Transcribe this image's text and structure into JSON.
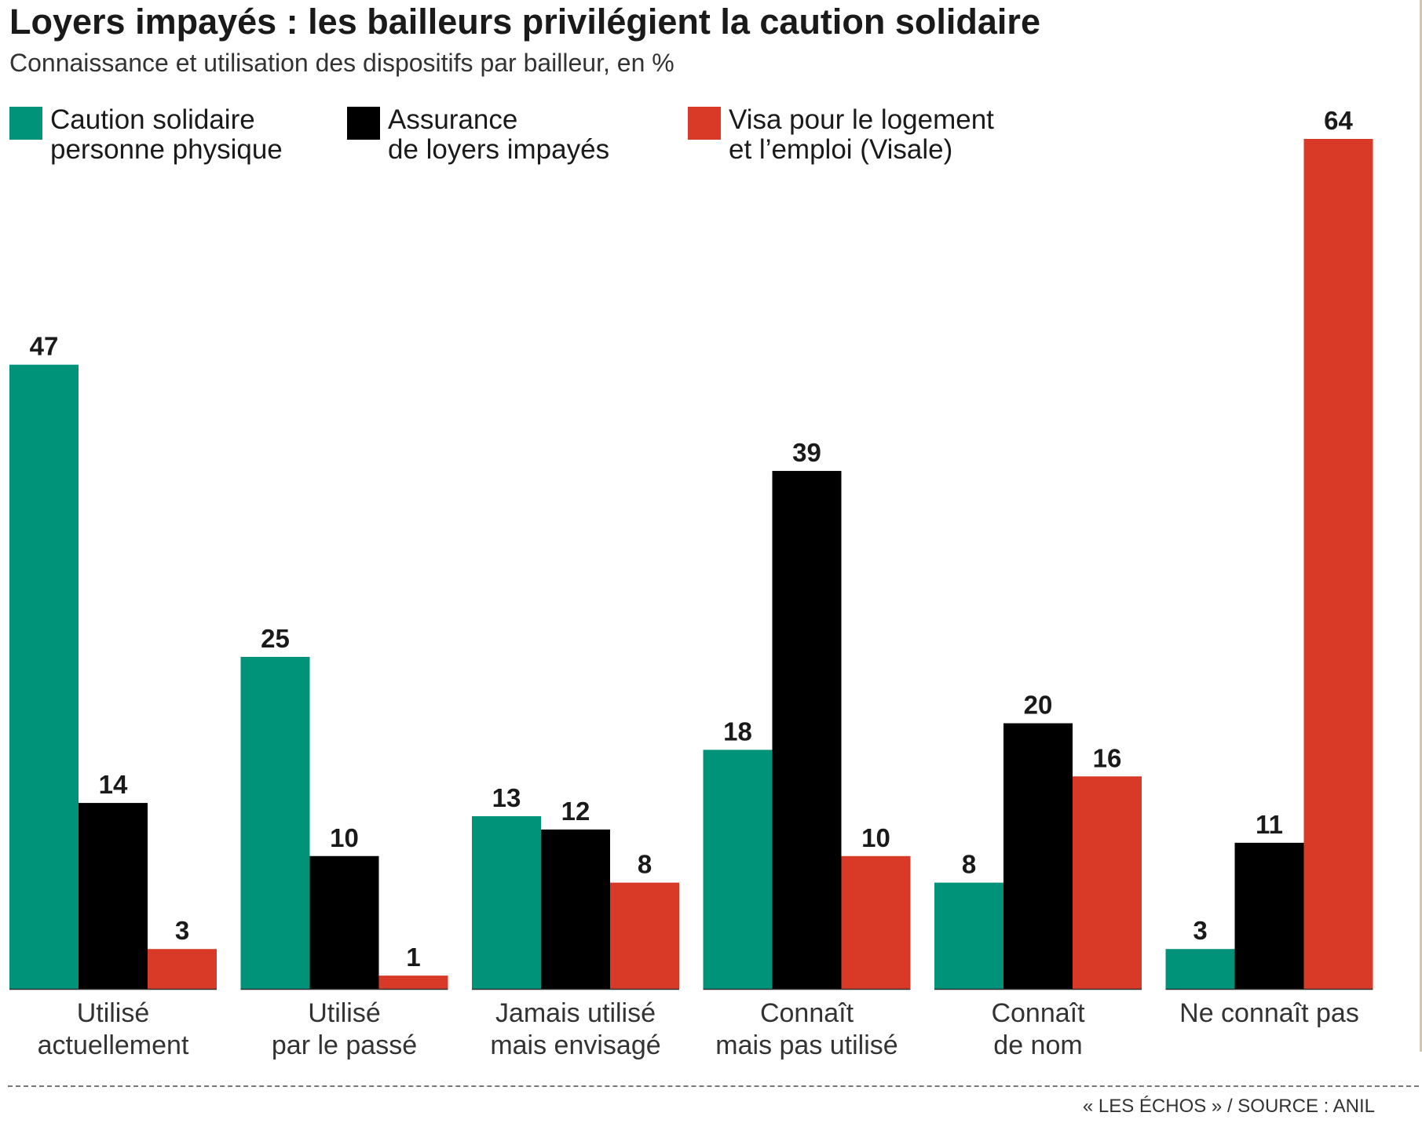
{
  "chart_data": {
    "type": "bar",
    "title": "Loyers impayés : les bailleurs privilégient la caution solidaire",
    "subtitle": "Connaissance et utilisation des dispositifs par bailleur, en %",
    "xlabel": "",
    "ylabel": "",
    "ylim": [
      0,
      64
    ],
    "grid": false,
    "legend_position": "top-left",
    "categories": [
      [
        "Utilisé",
        "actuellement"
      ],
      [
        "Utilisé",
        "par le passé"
      ],
      [
        "Jamais utilisé",
        "mais envisagé"
      ],
      [
        "Connaît",
        "mais pas utilisé"
      ],
      [
        "Connaît",
        "de nom"
      ],
      [
        "Ne connaît pas"
      ]
    ],
    "series": [
      {
        "name": [
          "Caution solidaire",
          "personne physique"
        ],
        "color": "#00937a",
        "values": [
          47,
          25,
          13,
          18,
          8,
          3
        ]
      },
      {
        "name": [
          "Assurance",
          "de loyers impayés"
        ],
        "color": "#000000",
        "values": [
          14,
          10,
          12,
          39,
          20,
          11
        ]
      },
      {
        "name": [
          "Visa pour le logement",
          "et l’emploi (Visale)"
        ],
        "color": "#d93a28",
        "values": [
          3,
          1,
          8,
          10,
          16,
          64
        ]
      }
    ]
  },
  "source": "« LES ÉCHOS » / SOURCE : ANIL"
}
